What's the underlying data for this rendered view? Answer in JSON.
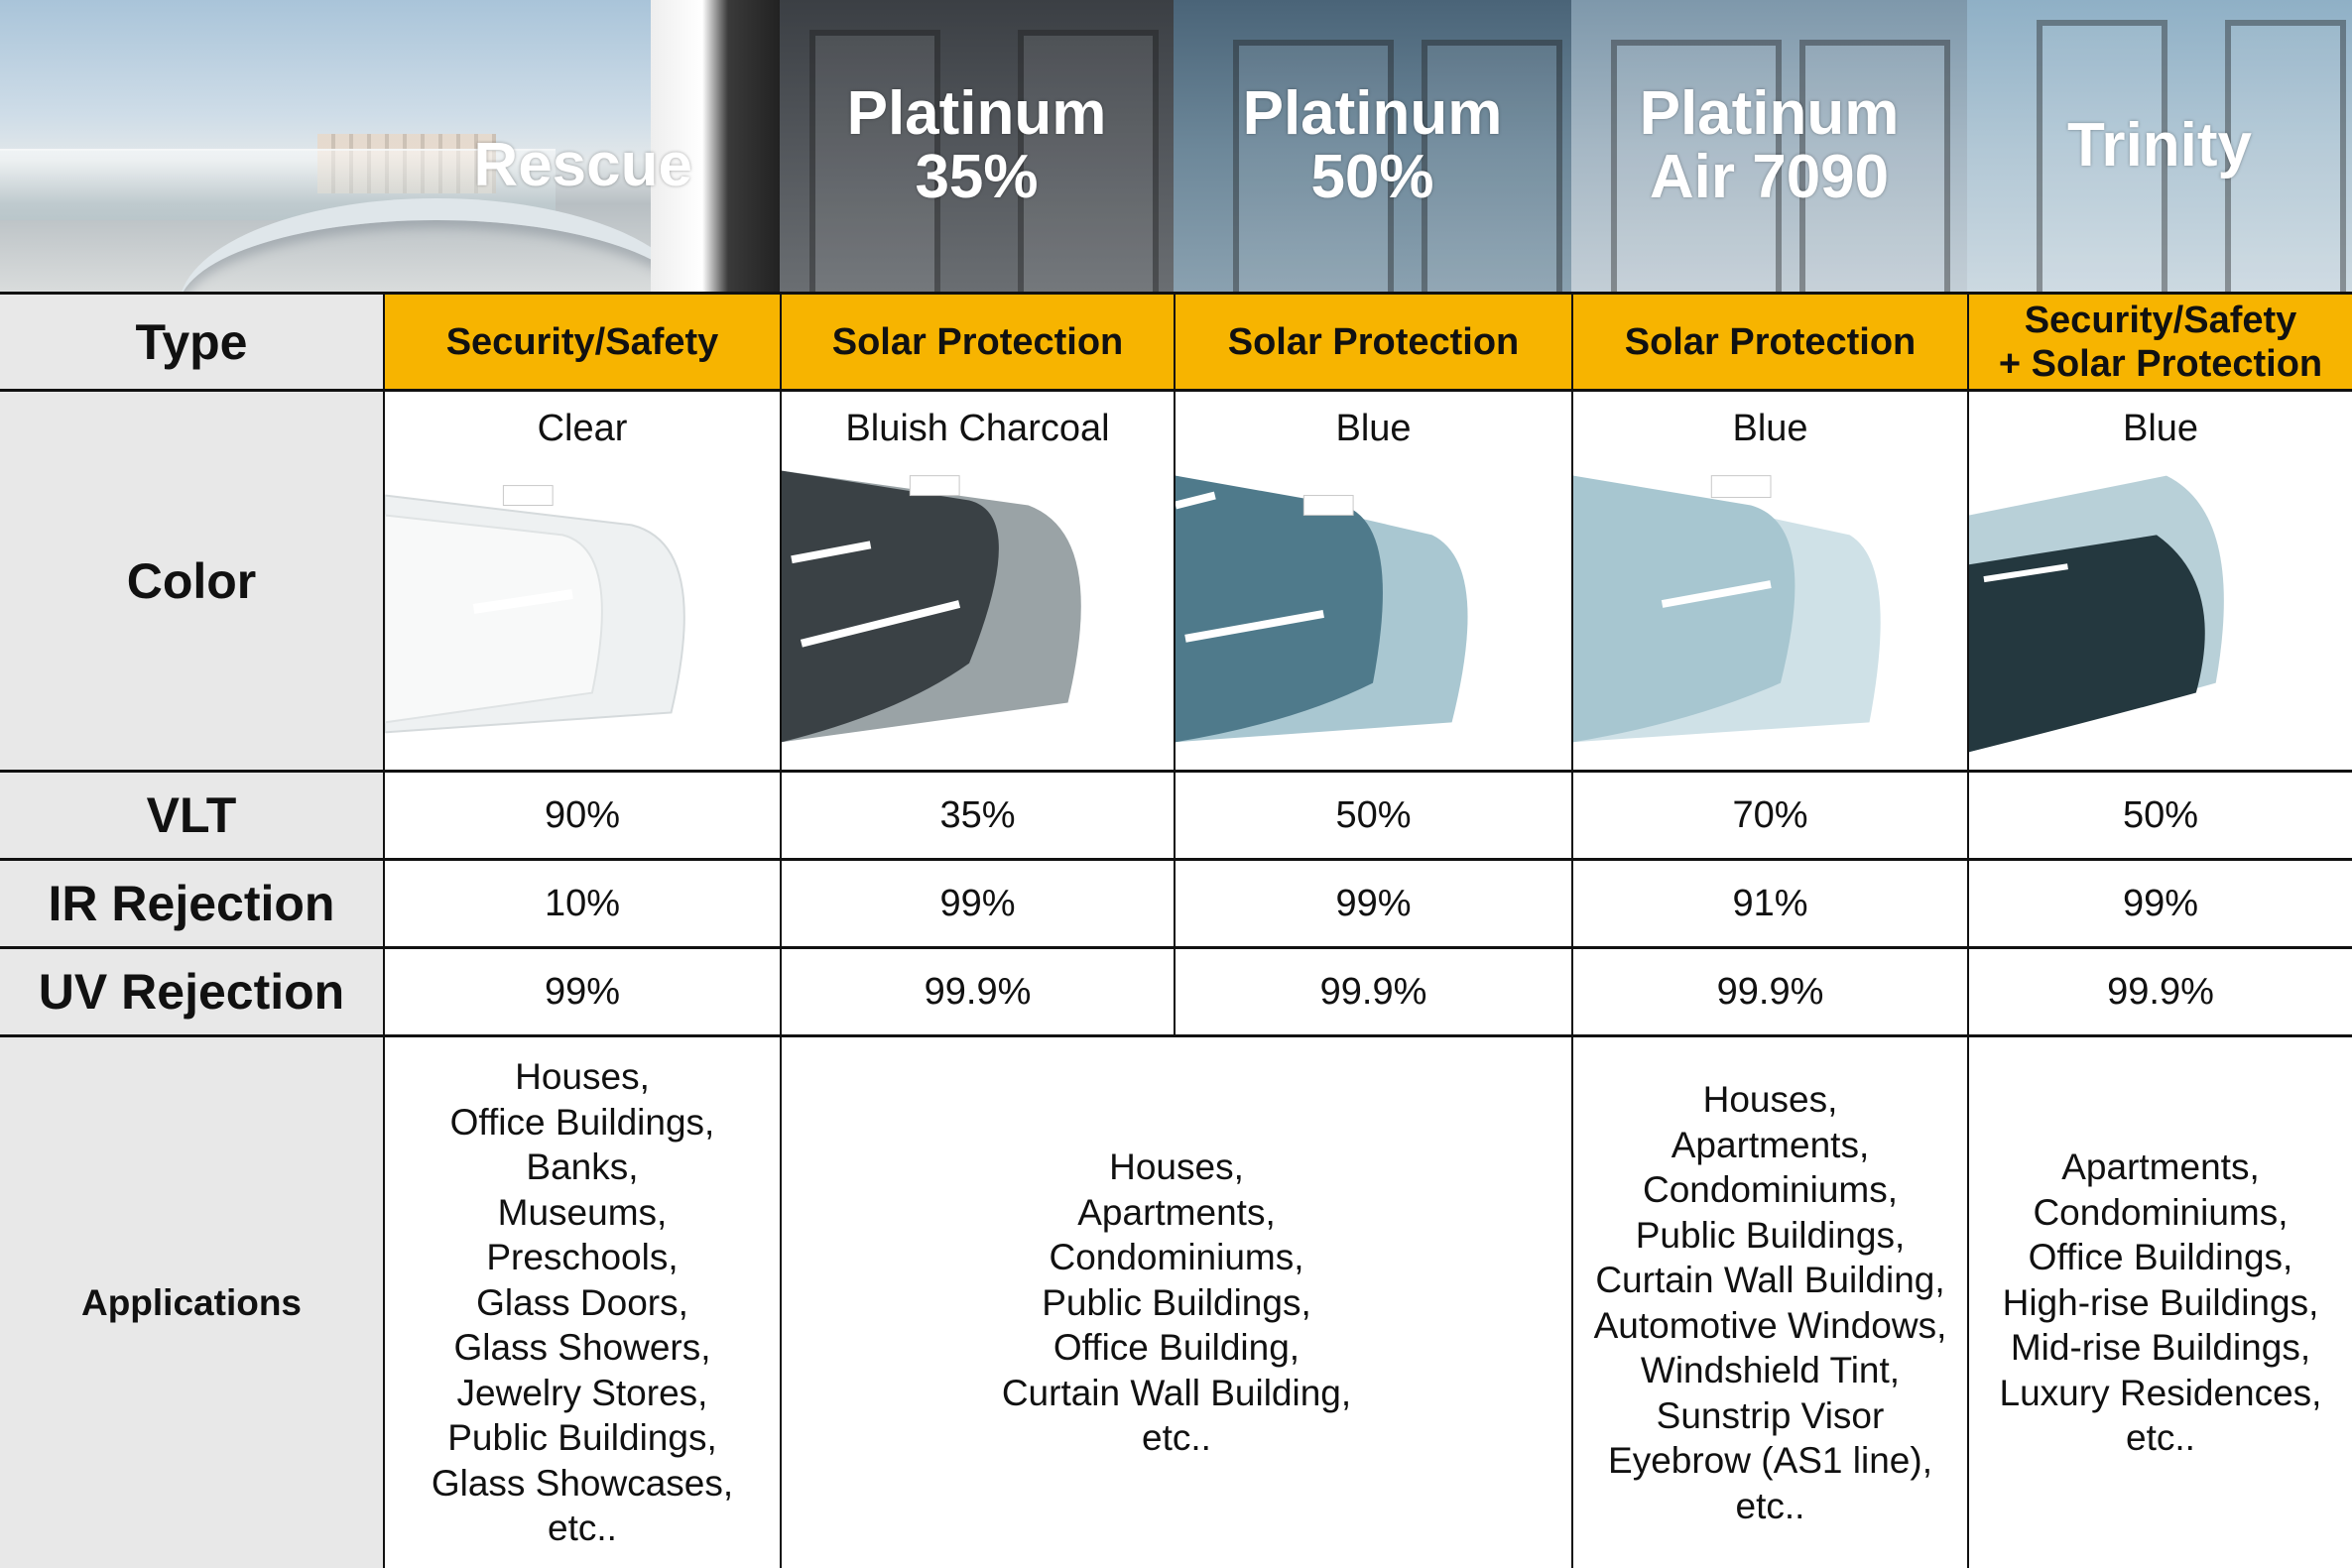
{
  "header": {
    "products": [
      {
        "name": "Rescue"
      },
      {
        "name": "Platinum\n35%"
      },
      {
        "name": "Platinum\n50%"
      },
      {
        "name": "Platinum\nAir 7090"
      },
      {
        "name": "Trinity"
      }
    ]
  },
  "rows": {
    "type": {
      "label": "Type",
      "values": [
        "Security/Safety",
        "Solar Protection",
        "Solar Protection",
        "Solar Protection",
        "Security/Safety\n+ Solar Protection"
      ]
    },
    "color": {
      "label": "Color",
      "values": [
        "Clear",
        "Bluish Charcoal",
        "Blue",
        "Blue",
        "Blue"
      ]
    },
    "vlt": {
      "label": "VLT",
      "values": [
        "90%",
        "35%",
        "50%",
        "70%",
        "50%"
      ]
    },
    "ir": {
      "label": "IR Rejection",
      "values": [
        "10%",
        "99%",
        "99%",
        "91%",
        "99%"
      ]
    },
    "uv": {
      "label": "UV Rejection",
      "values": [
        "99%",
        "99.9%",
        "99.9%",
        "99.9%",
        "99.9%"
      ]
    },
    "applications": {
      "label": "Applications",
      "rescue": "Houses,\nOffice Buildings,\nBanks,\nMuseums,\nPreschools,\nGlass Doors,\nGlass Showers,\nJewelry Stores,\nPublic Buildings,\nGlass Showcases,\netc..",
      "platinum": "Houses,\nApartments,\nCondominiums,\nPublic Buildings,\nOffice Building,\nCurtain Wall Building,\netc..",
      "air": "Houses,\nApartments,\nCondominiums,\nPublic Buildings,\nCurtain Wall Building,\nAutomotive Windows,\nWindshield Tint,\nSunstrip Visor\nEyebrow (AS1 line),\netc..",
      "trinity": "Apartments,\nCondominiums,\nOffice Buildings,\nHigh-rise Buildings,\nMid-rise Buildings,\nLuxury Residences,\netc.."
    }
  },
  "colors": {
    "type_highlight": "#f7b400",
    "label_bg": "#e8e8e8",
    "film_clear": "#f2f4f4",
    "film_charcoal": "#3a4145",
    "film_blue": "#5c8597",
    "film_light_blue": "#b9d3dc",
    "film_dark_blue": "#24383f"
  }
}
